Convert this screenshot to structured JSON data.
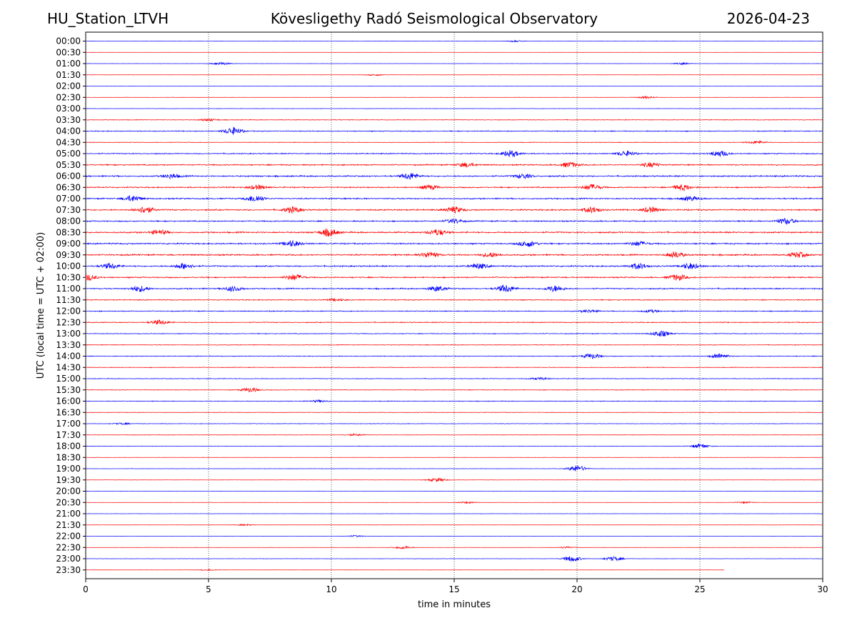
{
  "header": {
    "station": "HU_Station_LTVH",
    "observatory": "Kövesligethy Radó Seismological Observatory",
    "date": "2026-04-23"
  },
  "chart_data": {
    "type": "line",
    "title": "Kövesligethy Radó Seismological Observatory",
    "xlabel": "time in minutes",
    "ylabel": "UTC (local time = UTC + 02:00)",
    "xlim": [
      0,
      30
    ],
    "x_ticks": [
      0,
      5,
      10,
      15,
      20,
      25,
      30
    ],
    "grid": "vertical dotted lines at each x tick",
    "row_labels": [
      "00:00",
      "00:30",
      "01:00",
      "01:30",
      "02:00",
      "02:30",
      "03:00",
      "03:30",
      "04:00",
      "04:30",
      "05:00",
      "05:30",
      "06:00",
      "06:30",
      "07:00",
      "07:30",
      "08:00",
      "08:30",
      "09:00",
      "09:30",
      "10:00",
      "10:30",
      "11:00",
      "11:30",
      "12:00",
      "12:30",
      "13:00",
      "13:30",
      "14:00",
      "14:30",
      "15:00",
      "15:30",
      "16:00",
      "16:30",
      "17:00",
      "17:30",
      "18:00",
      "18:30",
      "19:00",
      "19:30",
      "20:00",
      "20:30",
      "21:00",
      "21:30",
      "22:00",
      "22:30",
      "23:00",
      "23:30"
    ],
    "colors": [
      "#0000ff",
      "#ff0000"
    ],
    "last_trace_end_minute": 26,
    "noise_levels": [
      0.15,
      0.12,
      0.15,
      0.18,
      0.15,
      0.2,
      0.25,
      0.45,
      0.6,
      0.4,
      0.7,
      0.8,
      0.9,
      0.8,
      0.85,
      0.9,
      0.8,
      0.95,
      0.9,
      0.95,
      0.9,
      0.8,
      0.8,
      0.6,
      0.6,
      0.6,
      0.5,
      0.45,
      0.5,
      0.45,
      0.45,
      0.45,
      0.45,
      0.35,
      0.35,
      0.3,
      0.3,
      0.2,
      0.25,
      0.2,
      0.15,
      0.15,
      0.15,
      0.15,
      0.15,
      0.15,
      0.2,
      0.15
    ],
    "events": [
      {
        "row": 0,
        "minute": 17.5,
        "amp": 1.0
      },
      {
        "row": 2,
        "minute": 5.5,
        "amp": 2.0
      },
      {
        "row": 2,
        "minute": 24.3,
        "amp": 1.2
      },
      {
        "row": 3,
        "minute": 11.8,
        "amp": 1.0
      },
      {
        "row": 5,
        "minute": 22.8,
        "amp": 1.5
      },
      {
        "row": 7,
        "minute": 5.0,
        "amp": 1.5
      },
      {
        "row": 8,
        "minute": 6.0,
        "amp": 5.0
      },
      {
        "row": 9,
        "minute": 27.3,
        "amp": 2.0
      },
      {
        "row": 10,
        "minute": 17.3,
        "amp": 4.5
      },
      {
        "row": 10,
        "minute": 22.0,
        "amp": 3.5
      },
      {
        "row": 10,
        "minute": 25.8,
        "amp": 4.0
      },
      {
        "row": 11,
        "minute": 15.5,
        "amp": 3.0
      },
      {
        "row": 11,
        "minute": 19.7,
        "amp": 3.5
      },
      {
        "row": 11,
        "minute": 23.0,
        "amp": 3.0
      },
      {
        "row": 12,
        "minute": 3.5,
        "amp": 3.0
      },
      {
        "row": 12,
        "minute": 13.2,
        "amp": 4.5
      },
      {
        "row": 12,
        "minute": 17.8,
        "amp": 3.0
      },
      {
        "row": 13,
        "minute": 7.0,
        "amp": 3.0
      },
      {
        "row": 13,
        "minute": 14.0,
        "amp": 3.0
      },
      {
        "row": 13,
        "minute": 20.6,
        "amp": 4.0
      },
      {
        "row": 13,
        "minute": 24.3,
        "amp": 4.0
      },
      {
        "row": 14,
        "minute": 1.9,
        "amp": 4.0
      },
      {
        "row": 14,
        "minute": 6.9,
        "amp": 4.5
      },
      {
        "row": 14,
        "minute": 24.6,
        "amp": 3.0
      },
      {
        "row": 15,
        "minute": 2.4,
        "amp": 4.5
      },
      {
        "row": 15,
        "minute": 8.4,
        "amp": 4.0
      },
      {
        "row": 15,
        "minute": 15.0,
        "amp": 4.0
      },
      {
        "row": 15,
        "minute": 20.6,
        "amp": 4.0
      },
      {
        "row": 15,
        "minute": 23.0,
        "amp": 3.5
      },
      {
        "row": 16,
        "minute": 15.0,
        "amp": 3.0
      },
      {
        "row": 16,
        "minute": 28.5,
        "amp": 4.0
      },
      {
        "row": 17,
        "minute": 3.0,
        "amp": 3.0
      },
      {
        "row": 17,
        "minute": 9.9,
        "amp": 5.0
      },
      {
        "row": 17,
        "minute": 14.3,
        "amp": 4.0
      },
      {
        "row": 18,
        "minute": 8.4,
        "amp": 4.0
      },
      {
        "row": 18,
        "minute": 18.0,
        "amp": 4.0
      },
      {
        "row": 18,
        "minute": 22.5,
        "amp": 3.0
      },
      {
        "row": 19,
        "minute": 14.0,
        "amp": 4.0
      },
      {
        "row": 19,
        "minute": 16.5,
        "amp": 3.0
      },
      {
        "row": 19,
        "minute": 24.0,
        "amp": 4.0
      },
      {
        "row": 19,
        "minute": 29.0,
        "amp": 3.5
      },
      {
        "row": 20,
        "minute": 1.0,
        "amp": 3.5
      },
      {
        "row": 20,
        "minute": 4.0,
        "amp": 4.0
      },
      {
        "row": 20,
        "minute": 16.0,
        "amp": 3.5
      },
      {
        "row": 20,
        "minute": 22.5,
        "amp": 4.0
      },
      {
        "row": 20,
        "minute": 24.6,
        "amp": 4.0
      },
      {
        "row": 21,
        "minute": 0.1,
        "amp": 4.0
      },
      {
        "row": 21,
        "minute": 8.5,
        "amp": 4.0
      },
      {
        "row": 21,
        "minute": 24.1,
        "amp": 4.0
      },
      {
        "row": 22,
        "minute": 2.2,
        "amp": 4.0
      },
      {
        "row": 22,
        "minute": 6.0,
        "amp": 3.5
      },
      {
        "row": 22,
        "minute": 14.3,
        "amp": 3.5
      },
      {
        "row": 22,
        "minute": 17.1,
        "amp": 5.0
      },
      {
        "row": 22,
        "minute": 19.1,
        "amp": 4.0
      },
      {
        "row": 23,
        "minute": 10.2,
        "amp": 1.5
      },
      {
        "row": 24,
        "minute": 20.5,
        "amp": 2.0
      },
      {
        "row": 24,
        "minute": 23.0,
        "amp": 1.8
      },
      {
        "row": 25,
        "minute": 3.0,
        "amp": 3.0
      },
      {
        "row": 26,
        "minute": 23.4,
        "amp": 4.0
      },
      {
        "row": 28,
        "minute": 20.6,
        "amp": 3.5
      },
      {
        "row": 28,
        "minute": 25.8,
        "amp": 3.5
      },
      {
        "row": 30,
        "minute": 18.5,
        "amp": 1.5
      },
      {
        "row": 31,
        "minute": 6.7,
        "amp": 3.0
      },
      {
        "row": 32,
        "minute": 9.5,
        "amp": 1.5
      },
      {
        "row": 34,
        "minute": 1.5,
        "amp": 1.0
      },
      {
        "row": 35,
        "minute": 11.0,
        "amp": 1.2
      },
      {
        "row": 36,
        "minute": 25.0,
        "amp": 3.0
      },
      {
        "row": 38,
        "minute": 20.0,
        "amp": 4.5
      },
      {
        "row": 39,
        "minute": 14.3,
        "amp": 2.5
      },
      {
        "row": 41,
        "minute": 15.5,
        "amp": 1.2
      },
      {
        "row": 41,
        "minute": 26.8,
        "amp": 1.0
      },
      {
        "row": 43,
        "minute": 6.5,
        "amp": 1.0
      },
      {
        "row": 44,
        "minute": 11.0,
        "amp": 1.2
      },
      {
        "row": 45,
        "minute": 12.9,
        "amp": 2.0
      },
      {
        "row": 45,
        "minute": 19.5,
        "amp": 1.2
      },
      {
        "row": 46,
        "minute": 19.8,
        "amp": 4.0
      },
      {
        "row": 46,
        "minute": 21.5,
        "amp": 3.0
      },
      {
        "row": 47,
        "minute": 5.0,
        "amp": 0.8
      }
    ]
  }
}
